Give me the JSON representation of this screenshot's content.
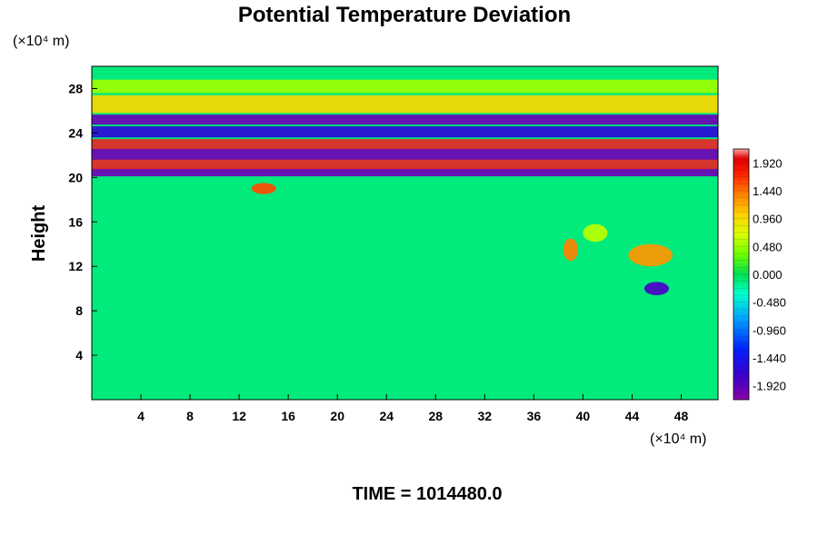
{
  "chart_data": {
    "type": "heatmap",
    "title": "Potential Temperature Deviation",
    "ylabel": "Height",
    "y_units": "(×10⁴ m)",
    "x_units": "(×10⁴ m)",
    "footer": "TIME = 1014480.0",
    "xlim": [
      0,
      51
    ],
    "ylim": [
      0,
      30
    ],
    "x_ticks": [
      4,
      8,
      12,
      16,
      20,
      24,
      28,
      32,
      36,
      40,
      44,
      48
    ],
    "y_ticks": [
      4,
      8,
      12,
      16,
      20,
      24,
      28
    ],
    "x_tick_labels": [
      "4",
      "8",
      "12",
      "16",
      "20",
      "24",
      "28",
      "32",
      "36",
      "40",
      "44",
      "48"
    ],
    "y_tick_labels": [
      "4",
      "8",
      "12",
      "16",
      "20",
      "24",
      "28"
    ],
    "colorbar": {
      "min": -2.16,
      "max": 2.16,
      "step": 0.12,
      "tick_values": [
        1.92,
        1.44,
        0.96,
        0.48,
        0.0,
        -0.48,
        -0.96,
        -1.44,
        -1.92
      ],
      "tick_labels": [
        "1.920",
        "1.440",
        "0.960",
        "0.480",
        "0.000",
        "-0.480",
        "-0.960",
        "-1.440",
        "-1.920"
      ]
    },
    "background_value": -0.12,
    "features": [
      {
        "kind": "band",
        "y": 20.5,
        "height": 0.8,
        "value": -2.0
      },
      {
        "kind": "band",
        "y": 21.2,
        "height": 0.9,
        "value": 2.0
      },
      {
        "kind": "band",
        "y": 22.1,
        "height": 1.0,
        "value": -2.0
      },
      {
        "kind": "band",
        "y": 23.0,
        "height": 0.9,
        "value": 2.0
      },
      {
        "kind": "band",
        "y": 24.1,
        "height": 1.0,
        "value": -1.6
      },
      {
        "kind": "band",
        "y": 25.2,
        "height": 0.9,
        "value": -2.0
      },
      {
        "kind": "band",
        "y": 26.6,
        "height": 1.6,
        "value": 1.0
      },
      {
        "kind": "band",
        "y": 28.2,
        "height": 1.2,
        "value": 0.5
      },
      {
        "kind": "blob",
        "x": 39.0,
        "y": 13.5,
        "rx": 0.6,
        "ry": 1.0,
        "value": 1.4
      },
      {
        "kind": "blob",
        "x": 45.5,
        "y": 13.0,
        "rx": 1.8,
        "ry": 1.0,
        "value": 1.3
      },
      {
        "kind": "blob",
        "x": 46.0,
        "y": 10.0,
        "rx": 1.0,
        "ry": 0.6,
        "value": -1.8
      },
      {
        "kind": "blob",
        "x": 14.0,
        "y": 19.0,
        "rx": 1.0,
        "ry": 0.5,
        "value": 1.6
      },
      {
        "kind": "blob",
        "x": 41.0,
        "y": 15.0,
        "rx": 1.0,
        "ry": 0.8,
        "value": 0.6
      }
    ]
  },
  "colors": {
    "frame": "#000000",
    "background": "#ffffff"
  }
}
